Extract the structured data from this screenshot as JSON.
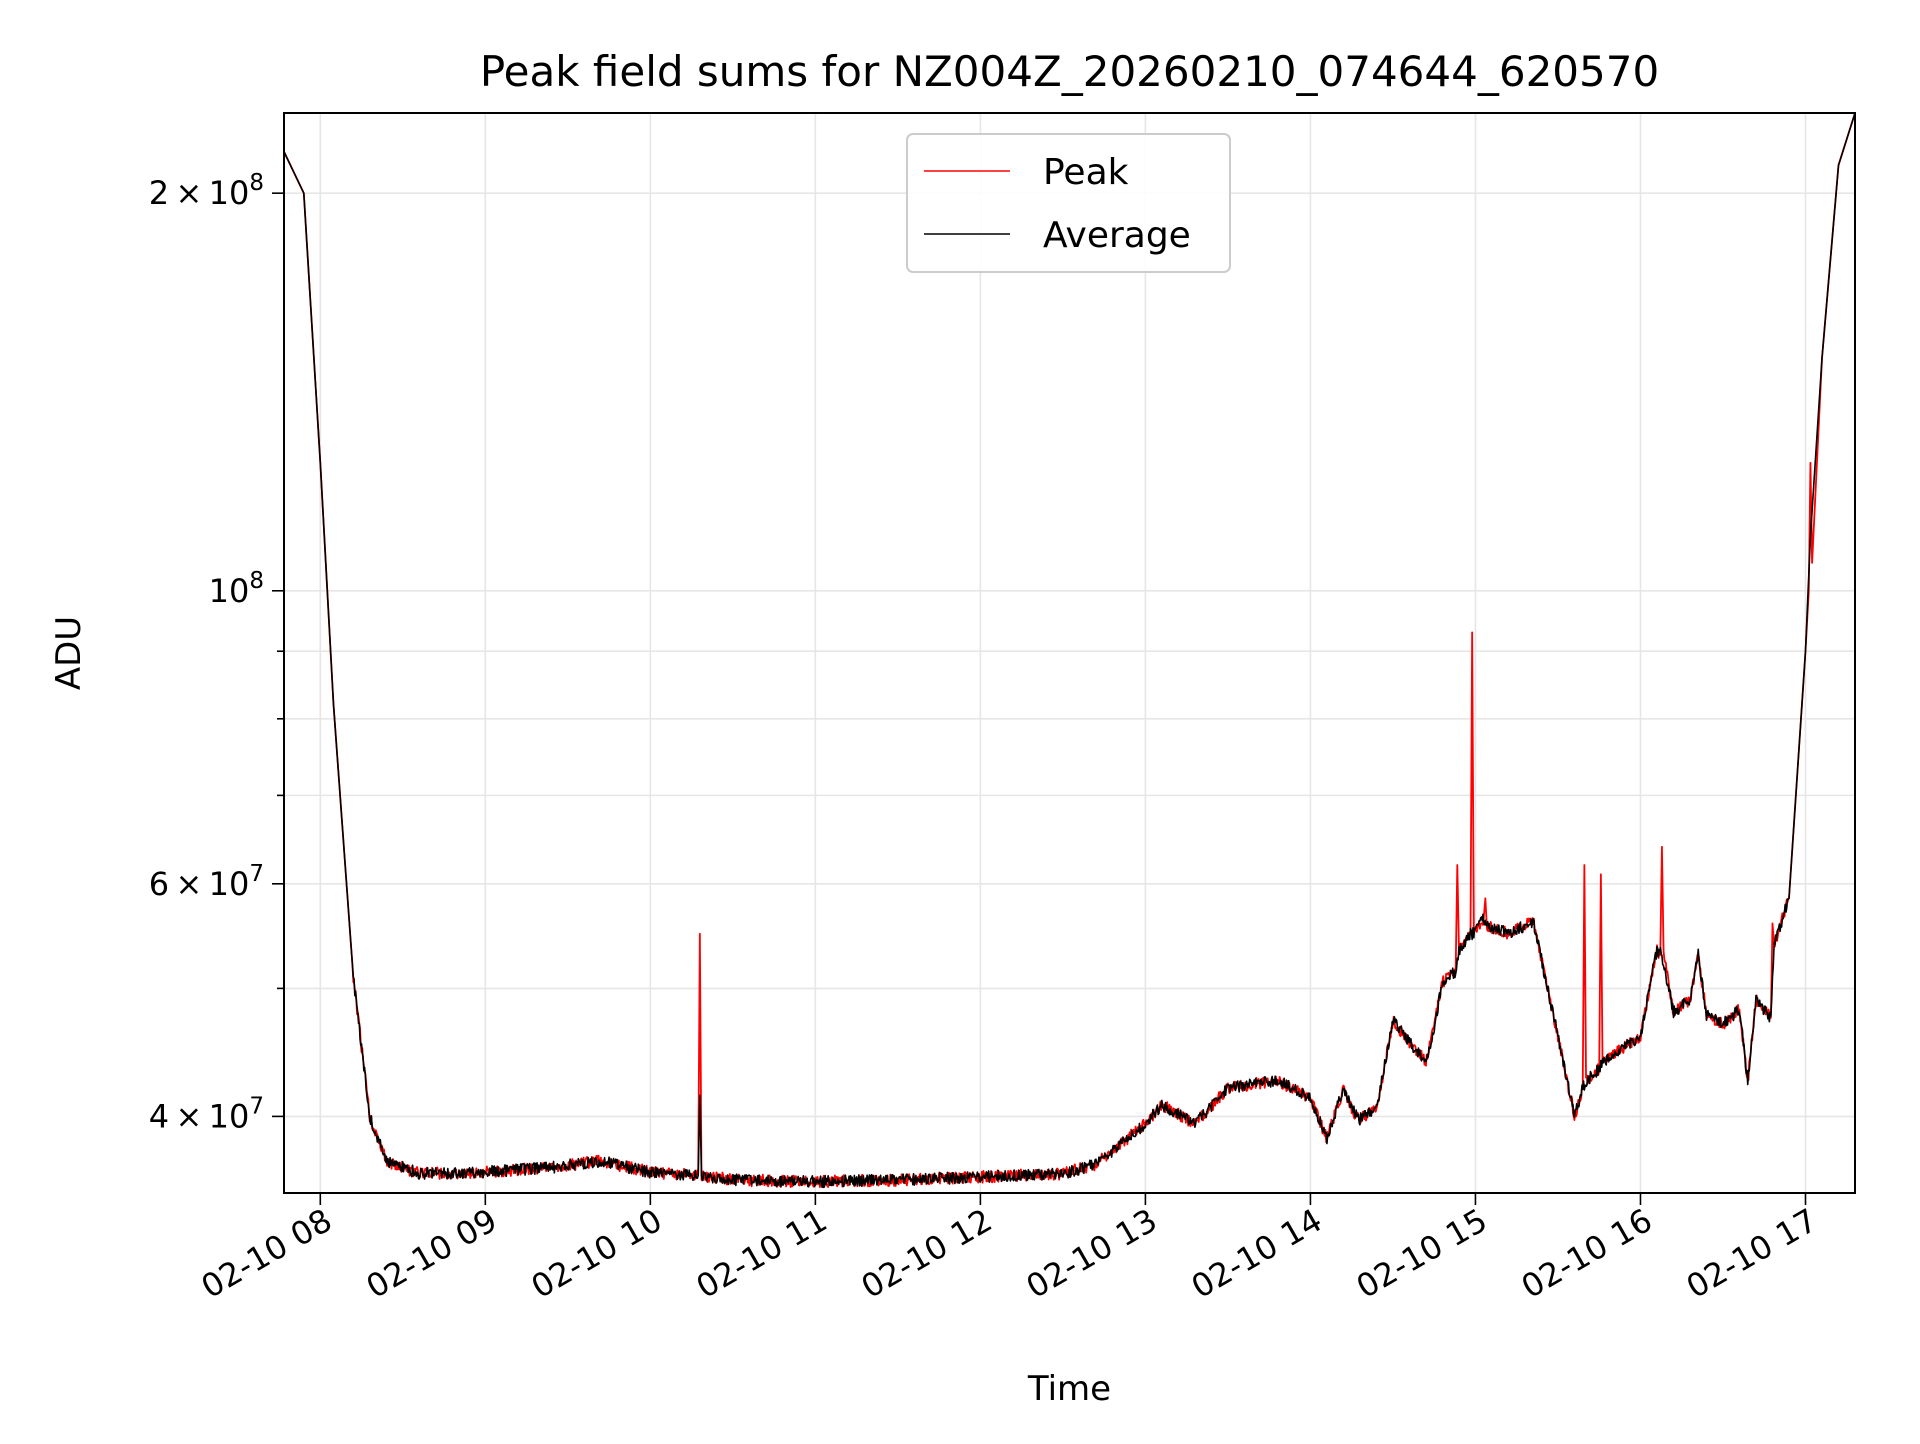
{
  "chart_data": {
    "type": "line",
    "title": "Peak field sums for NZ004Z_20260210_074644_620570",
    "xlabel": "Time",
    "ylabel": "ADU",
    "yscale": "log",
    "grid": true,
    "legend_position": "top-center",
    "xlim_hours": [
      7.78,
      17.3
    ],
    "ylim": [
      35000000,
      230000000
    ],
    "x_ticks": [
      {
        "value": 8,
        "label": "02-10 08"
      },
      {
        "value": 9,
        "label": "02-10 09"
      },
      {
        "value": 10,
        "label": "02-10 10"
      },
      {
        "value": 11,
        "label": "02-10 11"
      },
      {
        "value": 12,
        "label": "02-10 12"
      },
      {
        "value": 13,
        "label": "02-10 13"
      },
      {
        "value": 14,
        "label": "02-10 14"
      },
      {
        "value": 15,
        "label": "02-10 15"
      },
      {
        "value": 16,
        "label": "02-10 16"
      },
      {
        "value": 17,
        "label": "02-10 17"
      }
    ],
    "y_ticks": [
      {
        "value": 40000000,
        "mantissa": "4",
        "exponent": "7"
      },
      {
        "value": 60000000,
        "mantissa": "6",
        "exponent": "7"
      },
      {
        "value": 100000000,
        "mantissa": "",
        "exponent": "8"
      },
      {
        "value": 200000000,
        "mantissa": "2",
        "exponent": "8"
      }
    ],
    "y_label_base": "10",
    "y_minor_ticks": [
      50000000,
      70000000,
      80000000,
      90000000
    ],
    "series": [
      {
        "name": "Peak",
        "color": "#ff0000",
        "x": [
          7.78,
          7.9,
          8.0,
          8.08,
          8.2,
          8.3,
          8.4,
          8.6,
          9.0,
          9.4,
          9.7,
          10.0,
          10.29,
          10.3,
          10.31,
          10.5,
          11.0,
          11.5,
          12.0,
          12.5,
          12.7,
          13.0,
          13.1,
          13.3,
          13.5,
          13.8,
          14.0,
          14.1,
          14.2,
          14.25,
          14.3,
          14.4,
          14.5,
          14.6,
          14.7,
          14.75,
          14.8,
          14.88,
          14.89,
          14.9,
          14.97,
          14.98,
          14.99,
          15.05,
          15.06,
          15.07,
          15.2,
          15.35,
          15.5,
          15.6,
          15.65,
          15.66,
          15.67,
          15.75,
          15.76,
          15.77,
          16.0,
          16.1,
          16.12,
          16.13,
          16.14,
          16.2,
          16.3,
          16.35,
          16.4,
          16.5,
          16.6,
          16.65,
          16.7,
          16.79,
          16.8,
          16.81,
          16.9,
          17.0,
          17.02,
          17.03,
          17.04,
          17.1,
          17.2,
          17.3
        ],
        "y": [
          215000000,
          200000000,
          125000000,
          82000000,
          51000000,
          40000000,
          37000000,
          36200000,
          36300000,
          36600000,
          37000000,
          36300000,
          36100000,
          55000000,
          36100000,
          35800000,
          35700000,
          35800000,
          36000000,
          36200000,
          36800000,
          39500000,
          40800000,
          39500000,
          42000000,
          42600000,
          41300000,
          38500000,
          42000000,
          40500000,
          39800000,
          40500000,
          47300000,
          45500000,
          44000000,
          46800000,
          50500000,
          51500000,
          62000000,
          53500000,
          55000000,
          93000000,
          55000000,
          56500000,
          58500000,
          55800000,
          55000000,
          56200000,
          46000000,
          40000000,
          42000000,
          62000000,
          42500000,
          43500000,
          61000000,
          44000000,
          46000000,
          53500000,
          53000000,
          64000000,
          53000000,
          48000000,
          49000000,
          53000000,
          47800000,
          47000000,
          48200000,
          42500000,
          49000000,
          47500000,
          56000000,
          54000000,
          58500000,
          90000000,
          100000000,
          125000000,
          105000000,
          150000000,
          210000000,
          230000000
        ]
      },
      {
        "name": "Average",
        "color": "#000000",
        "x": [
          7.78,
          7.9,
          8.0,
          8.08,
          8.2,
          8.3,
          8.4,
          8.6,
          9.0,
          9.4,
          9.7,
          10.0,
          10.29,
          10.3,
          10.31,
          10.5,
          11.0,
          11.5,
          12.0,
          12.5,
          12.7,
          13.0,
          13.1,
          13.3,
          13.5,
          13.8,
          14.0,
          14.1,
          14.2,
          14.25,
          14.3,
          14.4,
          14.5,
          14.6,
          14.7,
          14.75,
          14.8,
          14.88,
          14.9,
          14.97,
          14.99,
          15.05,
          15.07,
          15.2,
          15.35,
          15.5,
          15.6,
          15.65,
          15.67,
          15.75,
          15.77,
          16.0,
          16.1,
          16.13,
          16.2,
          16.3,
          16.35,
          16.4,
          16.5,
          16.6,
          16.65,
          16.7,
          16.79,
          16.81,
          16.9,
          17.0,
          17.03,
          17.1,
          17.2,
          17.3
        ],
        "y": [
          215000000,
          200000000,
          125000000,
          82000000,
          51000000,
          40000000,
          37000000,
          36200000,
          36300000,
          36600000,
          37000000,
          36300000,
          36100000,
          41500000,
          36100000,
          35800000,
          35700000,
          35800000,
          36000000,
          36200000,
          36800000,
          39500000,
          40800000,
          39500000,
          42000000,
          42600000,
          41300000,
          38500000,
          42000000,
          40500000,
          39800000,
          40500000,
          47300000,
          45500000,
          44000000,
          46800000,
          50500000,
          51500000,
          53500000,
          55000000,
          55000000,
          56500000,
          55800000,
          55000000,
          56200000,
          46000000,
          40000000,
          42000000,
          42500000,
          43500000,
          44000000,
          46000000,
          53500000,
          53000000,
          48000000,
          49000000,
          53000000,
          47800000,
          47000000,
          48200000,
          42500000,
          49000000,
          47500000,
          54000000,
          58500000,
          90000000,
          110000000,
          150000000,
          210000000,
          230000000
        ]
      }
    ]
  }
}
